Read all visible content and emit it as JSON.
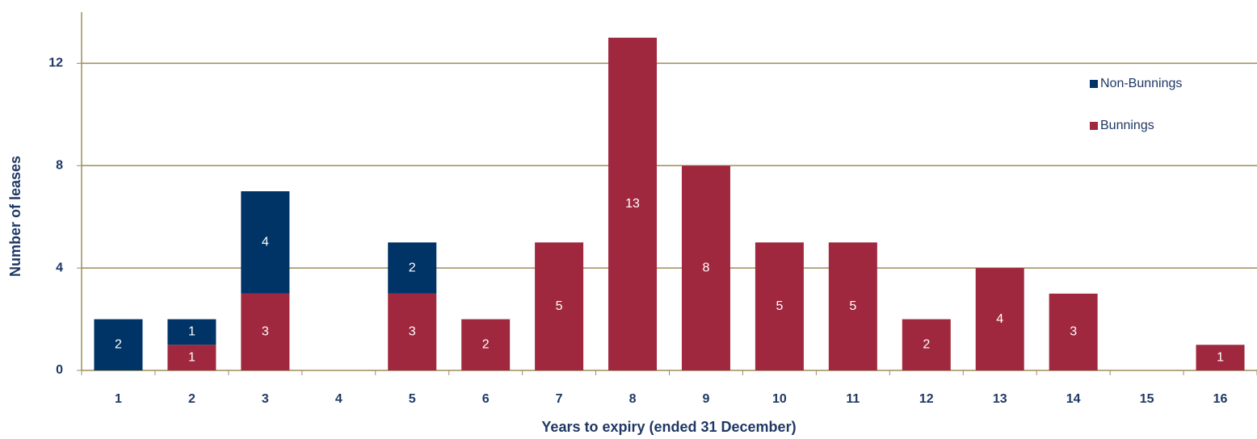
{
  "chart_data": {
    "type": "stacked_bar",
    "x_label": "Years to expiry (ended 31 December)",
    "y_label": "Number of leases",
    "categories": [
      "1",
      "2",
      "3",
      "4",
      "5",
      "6",
      "7",
      "8",
      "9",
      "10",
      "11",
      "12",
      "13",
      "14",
      "15",
      "16"
    ],
    "series": [
      {
        "name": "Bunnings",
        "color": "#a0283e",
        "values": [
          0,
          1,
          3,
          0,
          3,
          2,
          5,
          13,
          8,
          5,
          5,
          2,
          4,
          3,
          0,
          1
        ]
      },
      {
        "name": "Non-Bunnings",
        "color": "#003366",
        "values": [
          2,
          1,
          4,
          0,
          2,
          0,
          0,
          0,
          0,
          0,
          0,
          0,
          0,
          0,
          0,
          0
        ]
      }
    ],
    "ylim": [
      0,
      14
    ],
    "yticks": [
      0,
      4,
      8,
      12
    ],
    "grid": true,
    "legend": "upper right"
  }
}
